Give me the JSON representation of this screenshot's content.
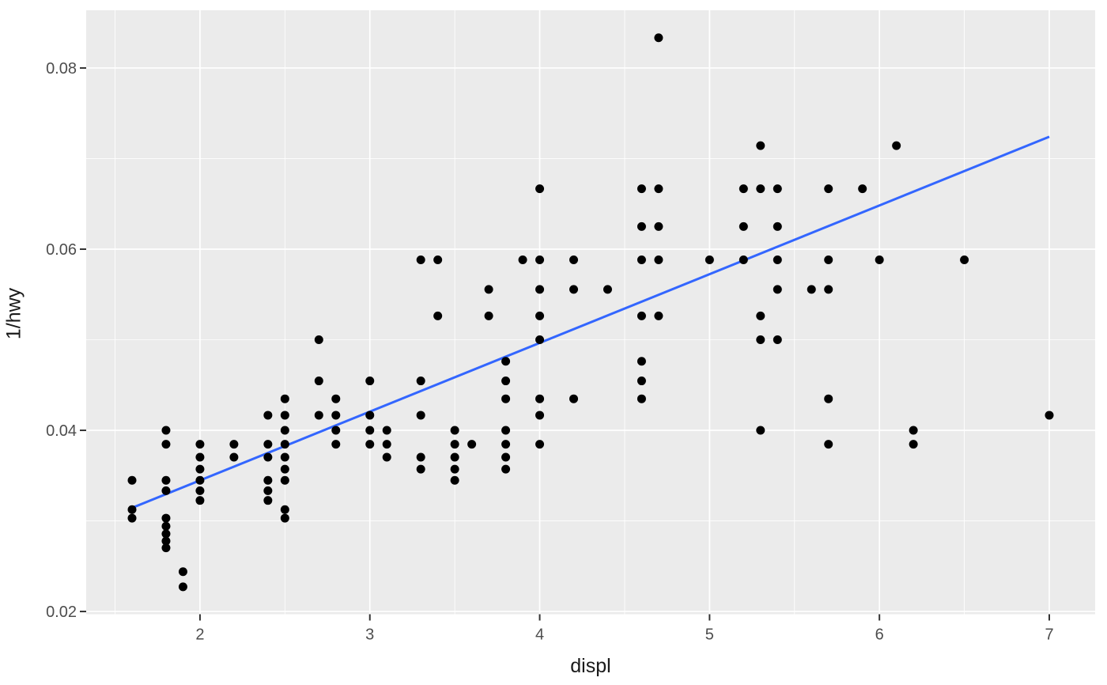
{
  "chart_data": {
    "type": "scatter",
    "title": "",
    "xlabel": "displ",
    "ylabel": "1/hwy",
    "x_ticks": {
      "values": [
        2,
        3,
        4,
        5,
        6,
        7
      ],
      "labels": [
        "2",
        "3",
        "4",
        "5",
        "6",
        "7"
      ]
    },
    "y_ticks": {
      "values": [
        0.02,
        0.04,
        0.06,
        0.08
      ],
      "labels": [
        "0.02",
        "0.04",
        "0.06",
        "0.08"
      ]
    },
    "x_minor": [
      1.5,
      2.5,
      3.5,
      4.5,
      5.5,
      6.5
    ],
    "y_minor": [
      0.03,
      0.05,
      0.07
    ],
    "xlim": [
      1.33,
      7.27
    ],
    "ylim": [
      0.0197,
      0.08637
    ],
    "grid": true,
    "legend": false,
    "y_is_reciprocal_of_hwy": true,
    "points_displ_hwy": [
      [
        1.6,
        29
      ],
      [
        1.6,
        32
      ],
      [
        1.6,
        33
      ],
      [
        1.8,
        25
      ],
      [
        1.8,
        26
      ],
      [
        1.8,
        29
      ],
      [
        1.8,
        30
      ],
      [
        1.8,
        33
      ],
      [
        1.8,
        34
      ],
      [
        1.8,
        35
      ],
      [
        1.8,
        36
      ],
      [
        1.8,
        37
      ],
      [
        1.9,
        41
      ],
      [
        1.9,
        44
      ],
      [
        2.0,
        26
      ],
      [
        2.0,
        27
      ],
      [
        2.0,
        28
      ],
      [
        2.0,
        29
      ],
      [
        2.0,
        30
      ],
      [
        2.0,
        31
      ],
      [
        2.2,
        26
      ],
      [
        2.2,
        27
      ],
      [
        2.4,
        24
      ],
      [
        2.4,
        26
      ],
      [
        2.4,
        27
      ],
      [
        2.4,
        29
      ],
      [
        2.4,
        30
      ],
      [
        2.4,
        31
      ],
      [
        2.5,
        23
      ],
      [
        2.5,
        24
      ],
      [
        2.5,
        25
      ],
      [
        2.5,
        26
      ],
      [
        2.5,
        27
      ],
      [
        2.5,
        28
      ],
      [
        2.5,
        29
      ],
      [
        2.5,
        32
      ],
      [
        2.5,
        33
      ],
      [
        2.7,
        20
      ],
      [
        2.7,
        22
      ],
      [
        2.7,
        24
      ],
      [
        2.8,
        23
      ],
      [
        2.8,
        24
      ],
      [
        2.8,
        25
      ],
      [
        2.8,
        26
      ],
      [
        3.0,
        22
      ],
      [
        3.0,
        24
      ],
      [
        3.0,
        25
      ],
      [
        3.0,
        26
      ],
      [
        3.1,
        25
      ],
      [
        3.1,
        26
      ],
      [
        3.1,
        27
      ],
      [
        3.3,
        17
      ],
      [
        3.3,
        22
      ],
      [
        3.3,
        24
      ],
      [
        3.3,
        27
      ],
      [
        3.3,
        28
      ],
      [
        3.4,
        17
      ],
      [
        3.4,
        19
      ],
      [
        3.5,
        25
      ],
      [
        3.5,
        26
      ],
      [
        3.5,
        27
      ],
      [
        3.5,
        28
      ],
      [
        3.5,
        29
      ],
      [
        3.6,
        26
      ],
      [
        3.7,
        18
      ],
      [
        3.7,
        19
      ],
      [
        3.8,
        21
      ],
      [
        3.8,
        22
      ],
      [
        3.8,
        23
      ],
      [
        3.8,
        25
      ],
      [
        3.8,
        26
      ],
      [
        3.8,
        27
      ],
      [
        3.8,
        28
      ],
      [
        3.9,
        17
      ],
      [
        4.0,
        15
      ],
      [
        4.0,
        17
      ],
      [
        4.0,
        18
      ],
      [
        4.0,
        19
      ],
      [
        4.0,
        20
      ],
      [
        4.0,
        23
      ],
      [
        4.0,
        24
      ],
      [
        4.0,
        26
      ],
      [
        4.2,
        17
      ],
      [
        4.2,
        18
      ],
      [
        4.2,
        23
      ],
      [
        4.4,
        18
      ],
      [
        4.6,
        15
      ],
      [
        4.6,
        16
      ],
      [
        4.6,
        17
      ],
      [
        4.6,
        19
      ],
      [
        4.6,
        21
      ],
      [
        4.6,
        22
      ],
      [
        4.6,
        23
      ],
      [
        4.7,
        12
      ],
      [
        4.7,
        15
      ],
      [
        4.7,
        16
      ],
      [
        4.7,
        17
      ],
      [
        4.7,
        19
      ],
      [
        5.0,
        17
      ],
      [
        5.2,
        15
      ],
      [
        5.2,
        16
      ],
      [
        5.2,
        17
      ],
      [
        5.3,
        14
      ],
      [
        5.3,
        15
      ],
      [
        5.3,
        19
      ],
      [
        5.3,
        20
      ],
      [
        5.3,
        25
      ],
      [
        5.4,
        15
      ],
      [
        5.4,
        16
      ],
      [
        5.4,
        17
      ],
      [
        5.4,
        18
      ],
      [
        5.4,
        20
      ],
      [
        5.6,
        18
      ],
      [
        5.7,
        15
      ],
      [
        5.7,
        17
      ],
      [
        5.7,
        18
      ],
      [
        5.7,
        23
      ],
      [
        5.7,
        26
      ],
      [
        5.9,
        15
      ],
      [
        6.0,
        17
      ],
      [
        6.1,
        14
      ],
      [
        6.2,
        25
      ],
      [
        6.2,
        26
      ],
      [
        6.5,
        17
      ],
      [
        7.0,
        24
      ]
    ],
    "trend_line": {
      "type": "linear",
      "x1": 1.6,
      "y1": 0.03144,
      "x2": 7.0,
      "y2": 0.07241,
      "color": "#3366FF",
      "width": 3
    },
    "style": {
      "panel_bg": "#EBEBEB",
      "grid_color": "#FFFFFF",
      "major_grid_width": 1.7,
      "minor_grid_width": 0.85,
      "point_color": "#000000",
      "point_radius": 5.5,
      "tick_color": "#333333",
      "tick_length": 8,
      "tick_label_color": "#4D4D4D",
      "tick_label_size": 20,
      "axis_title_color": "#1A1A1A"
    }
  }
}
